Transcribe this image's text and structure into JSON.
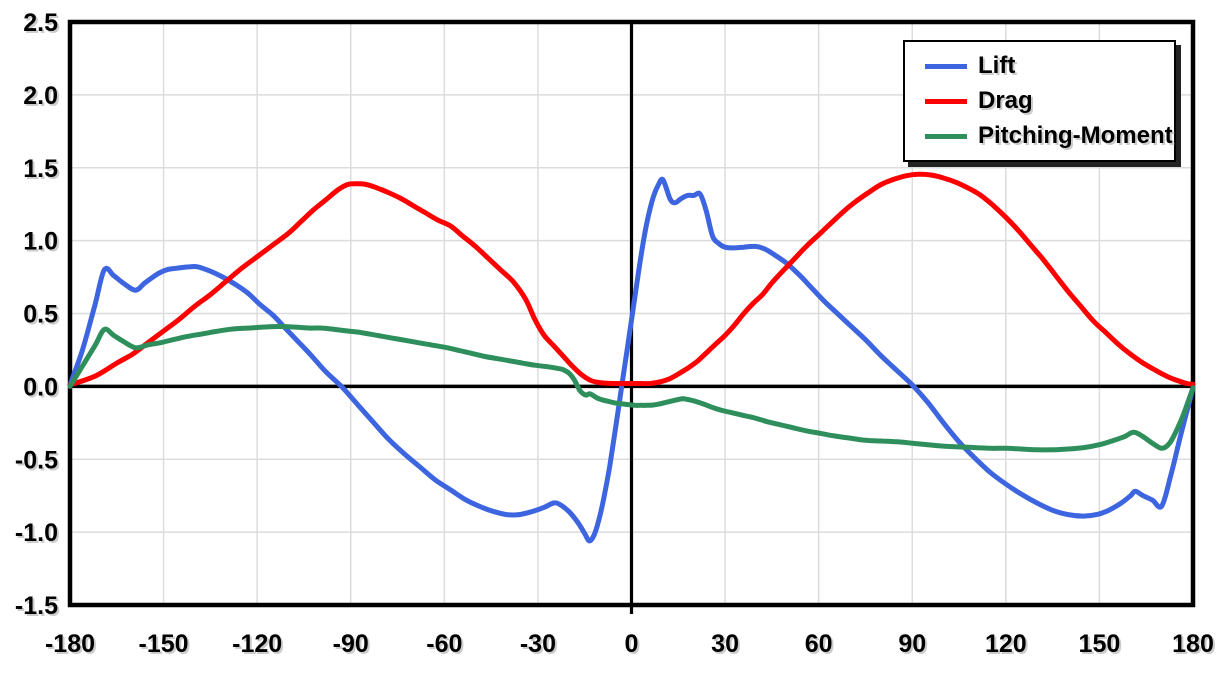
{
  "chart_data": {
    "type": "line",
    "title": "",
    "xlabel": "",
    "ylabel": "",
    "xlim": [
      -180,
      180
    ],
    "ylim": [
      -1.5,
      2.5
    ],
    "grid": true,
    "grid_color": "#DCDCDC",
    "axis_color": "#000000",
    "x_ticks": [
      -180,
      -150,
      -120,
      -90,
      -60,
      -30,
      0,
      30,
      60,
      90,
      120,
      150,
      180
    ],
    "x_tick_labels": [
      "-180",
      "-150",
      "-120",
      "-90",
      "-60",
      "-30",
      "0",
      "30",
      "60",
      "90",
      "120",
      "150",
      "180"
    ],
    "y_ticks": [
      -1.5,
      -1.0,
      -0.5,
      0.0,
      0.5,
      1.0,
      1.5,
      2.0,
      2.5
    ],
    "y_tick_labels": [
      "-1.5",
      "-1.0",
      "-0.5",
      "0.0",
      "0.5",
      "1.0",
      "1.5",
      "2.0",
      "2.5"
    ],
    "legend": {
      "position": "top-right"
    },
    "series": [
      {
        "name": "Lift",
        "color": "#3E65E0",
        "points": [
          [
            -180,
            0.01
          ],
          [
            -176,
            0.25
          ],
          [
            -172,
            0.56
          ],
          [
            -169,
            0.8
          ],
          [
            -166,
            0.76
          ],
          [
            -163,
            0.71
          ],
          [
            -159,
            0.66
          ],
          [
            -156,
            0.71
          ],
          [
            -152,
            0.77
          ],
          [
            -149,
            0.8
          ],
          [
            -146,
            0.81
          ],
          [
            -142,
            0.82
          ],
          [
            -139,
            0.82
          ],
          [
            -135,
            0.79
          ],
          [
            -131,
            0.75
          ],
          [
            -127,
            0.7
          ],
          [
            -123,
            0.64
          ],
          [
            -119,
            0.56
          ],
          [
            -115,
            0.49
          ],
          [
            -111,
            0.4
          ],
          [
            -107,
            0.31
          ],
          [
            -103,
            0.22
          ],
          [
            -98,
            0.1
          ],
          [
            -93,
            0.0
          ],
          [
            -88,
            -0.12
          ],
          [
            -83,
            -0.24
          ],
          [
            -78,
            -0.36
          ],
          [
            -73,
            -0.46
          ],
          [
            -68,
            -0.55
          ],
          [
            -63,
            -0.64
          ],
          [
            -58,
            -0.71
          ],
          [
            -53,
            -0.78
          ],
          [
            -48,
            -0.83
          ],
          [
            -44,
            -0.86
          ],
          [
            -40,
            -0.88
          ],
          [
            -36,
            -0.88
          ],
          [
            -32,
            -0.86
          ],
          [
            -28,
            -0.83
          ],
          [
            -25,
            -0.8
          ],
          [
            -23,
            -0.81
          ],
          [
            -20,
            -0.86
          ],
          [
            -17,
            -0.94
          ],
          [
            -15,
            -1.01
          ],
          [
            -13.5,
            -1.06
          ],
          [
            -12,
            -1.02
          ],
          [
            -10.5,
            -0.92
          ],
          [
            -9,
            -0.78
          ],
          [
            -7,
            -0.55
          ],
          [
            -5,
            -0.27
          ],
          [
            -3,
            0.02
          ],
          [
            -1,
            0.31
          ],
          [
            1,
            0.6
          ],
          [
            3,
            0.89
          ],
          [
            5,
            1.13
          ],
          [
            7,
            1.3
          ],
          [
            9,
            1.4
          ],
          [
            10,
            1.42
          ],
          [
            11,
            1.37
          ],
          [
            12.5,
            1.28
          ],
          [
            14,
            1.26
          ],
          [
            16,
            1.29
          ],
          [
            18,
            1.31
          ],
          [
            20,
            1.31
          ],
          [
            22,
            1.32
          ],
          [
            24,
            1.2
          ],
          [
            26,
            1.03
          ],
          [
            28,
            0.98
          ],
          [
            30,
            0.955
          ],
          [
            33,
            0.95
          ],
          [
            36,
            0.955
          ],
          [
            40,
            0.96
          ],
          [
            43,
            0.94
          ],
          [
            46,
            0.9
          ],
          [
            50,
            0.84
          ],
          [
            54,
            0.76
          ],
          [
            58,
            0.67
          ],
          [
            62,
            0.58
          ],
          [
            66,
            0.5
          ],
          [
            70,
            0.42
          ],
          [
            75,
            0.32
          ],
          [
            80,
            0.21
          ],
          [
            85,
            0.11
          ],
          [
            90,
            0.01
          ],
          [
            95,
            -0.11
          ],
          [
            100,
            -0.25
          ],
          [
            105,
            -0.38
          ],
          [
            110,
            -0.49
          ],
          [
            115,
            -0.59
          ],
          [
            120,
            -0.67
          ],
          [
            125,
            -0.74
          ],
          [
            130,
            -0.8
          ],
          [
            135,
            -0.85
          ],
          [
            140,
            -0.88
          ],
          [
            145,
            -0.89
          ],
          [
            149,
            -0.88
          ],
          [
            153,
            -0.85
          ],
          [
            157,
            -0.8
          ],
          [
            160,
            -0.75
          ],
          [
            161.5,
            -0.72
          ],
          [
            164,
            -0.75
          ],
          [
            167,
            -0.78
          ],
          [
            170,
            -0.82
          ],
          [
            173,
            -0.6
          ],
          [
            176,
            -0.34
          ],
          [
            180,
            -0.01
          ]
        ]
      },
      {
        "name": "Drag",
        "color": "#FE0000",
        "points": [
          [
            -180,
            0.01
          ],
          [
            -172,
            0.07
          ],
          [
            -165,
            0.16
          ],
          [
            -160,
            0.22
          ],
          [
            -155,
            0.3
          ],
          [
            -150,
            0.38
          ],
          [
            -145,
            0.46
          ],
          [
            -140,
            0.55
          ],
          [
            -135,
            0.63
          ],
          [
            -130,
            0.72
          ],
          [
            -125,
            0.81
          ],
          [
            -120,
            0.89
          ],
          [
            -115,
            0.97
          ],
          [
            -110,
            1.05
          ],
          [
            -106,
            1.13
          ],
          [
            -102,
            1.21
          ],
          [
            -98,
            1.28
          ],
          [
            -94,
            1.35
          ],
          [
            -91,
            1.385
          ],
          [
            -88,
            1.39
          ],
          [
            -85,
            1.385
          ],
          [
            -82,
            1.365
          ],
          [
            -78,
            1.33
          ],
          [
            -74,
            1.29
          ],
          [
            -70,
            1.24
          ],
          [
            -66,
            1.19
          ],
          [
            -62,
            1.14
          ],
          [
            -58,
            1.1
          ],
          [
            -54,
            1.03
          ],
          [
            -50,
            0.96
          ],
          [
            -46,
            0.88
          ],
          [
            -42,
            0.8
          ],
          [
            -38,
            0.72
          ],
          [
            -34,
            0.6
          ],
          [
            -31,
            0.46
          ],
          [
            -28,
            0.35
          ],
          [
            -25,
            0.28
          ],
          [
            -22,
            0.21
          ],
          [
            -19,
            0.14
          ],
          [
            -16,
            0.08
          ],
          [
            -13,
            0.04
          ],
          [
            -10,
            0.025
          ],
          [
            -6,
            0.02
          ],
          [
            -2,
            0.02
          ],
          [
            2,
            0.02
          ],
          [
            6,
            0.02
          ],
          [
            9,
            0.03
          ],
          [
            12,
            0.05
          ],
          [
            15,
            0.085
          ],
          [
            18,
            0.125
          ],
          [
            21,
            0.17
          ],
          [
            24,
            0.23
          ],
          [
            27,
            0.29
          ],
          [
            30,
            0.35
          ],
          [
            33,
            0.42
          ],
          [
            36,
            0.5
          ],
          [
            39,
            0.57
          ],
          [
            42,
            0.63
          ],
          [
            45,
            0.71
          ],
          [
            48,
            0.78
          ],
          [
            52,
            0.87
          ],
          [
            56,
            0.96
          ],
          [
            60,
            1.04
          ],
          [
            64,
            1.12
          ],
          [
            68,
            1.2
          ],
          [
            72,
            1.27
          ],
          [
            76,
            1.33
          ],
          [
            80,
            1.385
          ],
          [
            84,
            1.42
          ],
          [
            88,
            1.445
          ],
          [
            92,
            1.455
          ],
          [
            96,
            1.45
          ],
          [
            100,
            1.43
          ],
          [
            104,
            1.4
          ],
          [
            108,
            1.36
          ],
          [
            112,
            1.31
          ],
          [
            116,
            1.24
          ],
          [
            120,
            1.16
          ],
          [
            124,
            1.07
          ],
          [
            128,
            0.97
          ],
          [
            132,
            0.87
          ],
          [
            136,
            0.76
          ],
          [
            140,
            0.65
          ],
          [
            144,
            0.55
          ],
          [
            148,
            0.45
          ],
          [
            152,
            0.37
          ],
          [
            156,
            0.29
          ],
          [
            160,
            0.22
          ],
          [
            164,
            0.16
          ],
          [
            168,
            0.11
          ],
          [
            172,
            0.065
          ],
          [
            175,
            0.04
          ],
          [
            178,
            0.02
          ],
          [
            180,
            0.015
          ]
        ]
      },
      {
        "name": "Pitching-Moment",
        "color": "#2E8F5D",
        "points": [
          [
            -180,
            0.0
          ],
          [
            -176,
            0.14
          ],
          [
            -172,
            0.28
          ],
          [
            -169,
            0.39
          ],
          [
            -166,
            0.35
          ],
          [
            -163,
            0.31
          ],
          [
            -159,
            0.265
          ],
          [
            -155,
            0.285
          ],
          [
            -151,
            0.3
          ],
          [
            -147,
            0.32
          ],
          [
            -143,
            0.34
          ],
          [
            -139,
            0.355
          ],
          [
            -135,
            0.37
          ],
          [
            -131,
            0.385
          ],
          [
            -127,
            0.395
          ],
          [
            -123,
            0.4
          ],
          [
            -119,
            0.405
          ],
          [
            -115,
            0.41
          ],
          [
            -111,
            0.41
          ],
          [
            -107,
            0.405
          ],
          [
            -103,
            0.4
          ],
          [
            -99,
            0.4
          ],
          [
            -95,
            0.39
          ],
          [
            -91,
            0.38
          ],
          [
            -87,
            0.37
          ],
          [
            -83,
            0.355
          ],
          [
            -79,
            0.34
          ],
          [
            -75,
            0.325
          ],
          [
            -71,
            0.31
          ],
          [
            -67,
            0.295
          ],
          [
            -63,
            0.28
          ],
          [
            -59,
            0.265
          ],
          [
            -55,
            0.245
          ],
          [
            -51,
            0.225
          ],
          [
            -47,
            0.205
          ],
          [
            -43,
            0.19
          ],
          [
            -39,
            0.175
          ],
          [
            -35,
            0.16
          ],
          [
            -31,
            0.145
          ],
          [
            -27,
            0.135
          ],
          [
            -24,
            0.125
          ],
          [
            -22,
            0.115
          ],
          [
            -20,
            0.09
          ],
          [
            -18.5,
            0.05
          ],
          [
            -17.5,
            0.01
          ],
          [
            -16.5,
            -0.03
          ],
          [
            -15.5,
            -0.05
          ],
          [
            -14.5,
            -0.06
          ],
          [
            -13.5,
            -0.05
          ],
          [
            -12.5,
            -0.06
          ],
          [
            -11,
            -0.08
          ],
          [
            -9,
            -0.095
          ],
          [
            -7,
            -0.105
          ],
          [
            -5,
            -0.115
          ],
          [
            -3,
            -0.12
          ],
          [
            -1,
            -0.125
          ],
          [
            1,
            -0.13
          ],
          [
            3,
            -0.13
          ],
          [
            5,
            -0.13
          ],
          [
            7,
            -0.128
          ],
          [
            9,
            -0.12
          ],
          [
            11,
            -0.11
          ],
          [
            13,
            -0.1
          ],
          [
            15,
            -0.09
          ],
          [
            16.5,
            -0.085
          ],
          [
            18,
            -0.09
          ],
          [
            20,
            -0.1
          ],
          [
            23,
            -0.12
          ],
          [
            26,
            -0.145
          ],
          [
            29,
            -0.165
          ],
          [
            32,
            -0.18
          ],
          [
            36,
            -0.2
          ],
          [
            40,
            -0.22
          ],
          [
            44,
            -0.245
          ],
          [
            48,
            -0.265
          ],
          [
            52,
            -0.285
          ],
          [
            56,
            -0.305
          ],
          [
            60,
            -0.32
          ],
          [
            65,
            -0.34
          ],
          [
            70,
            -0.355
          ],
          [
            75,
            -0.37
          ],
          [
            80,
            -0.375
          ],
          [
            85,
            -0.38
          ],
          [
            90,
            -0.39
          ],
          [
            95,
            -0.4
          ],
          [
            100,
            -0.41
          ],
          [
            105,
            -0.415
          ],
          [
            110,
            -0.42
          ],
          [
            115,
            -0.425
          ],
          [
            120,
            -0.425
          ],
          [
            125,
            -0.43
          ],
          [
            130,
            -0.435
          ],
          [
            135,
            -0.435
          ],
          [
            140,
            -0.43
          ],
          [
            145,
            -0.42
          ],
          [
            150,
            -0.4
          ],
          [
            154,
            -0.375
          ],
          [
            158,
            -0.345
          ],
          [
            161,
            -0.315
          ],
          [
            164,
            -0.345
          ],
          [
            167,
            -0.39
          ],
          [
            170,
            -0.425
          ],
          [
            172.5,
            -0.39
          ],
          [
            175,
            -0.29
          ],
          [
            177,
            -0.19
          ],
          [
            180,
            -0.01
          ]
        ]
      }
    ]
  }
}
